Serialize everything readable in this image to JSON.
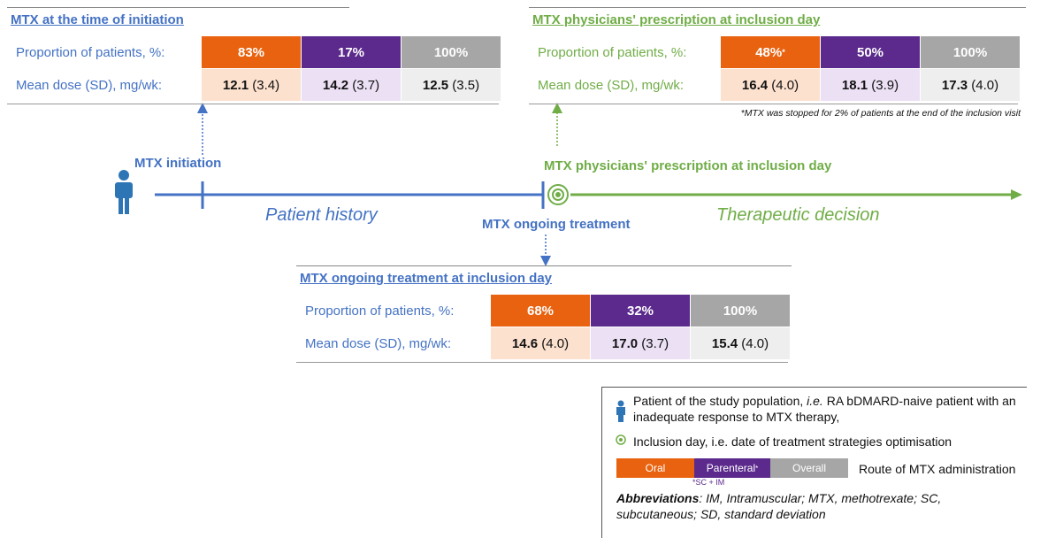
{
  "panels": [
    {
      "title": "MTX at the time of initiation",
      "rows": [
        {
          "label": "Proportion of patients, %:",
          "cells": [
            {
              "value": "83%"
            },
            {
              "value": "17%"
            },
            {
              "value": "100%"
            }
          ]
        },
        {
          "label": "Mean dose (SD), mg/wk:",
          "cells": [
            {
              "mean": "12.1",
              "sd": "(3.4)"
            },
            {
              "mean": "14.2",
              "sd": "(3.7)"
            },
            {
              "mean": "12.5",
              "sd": "(3.5)"
            }
          ]
        }
      ]
    },
    {
      "title": "MTX physicians' prescription at inclusion day",
      "rows": [
        {
          "label": "Proportion of patients, %:",
          "cells": [
            {
              "value": "48%",
              "mark": "*"
            },
            {
              "value": "50%"
            },
            {
              "value": "100%"
            }
          ]
        },
        {
          "label": "Mean dose (SD), mg/wk:",
          "cells": [
            {
              "mean": "16.4",
              "sd": "(4.0)"
            },
            {
              "mean": "18.1",
              "sd": "(3.9)"
            },
            {
              "mean": "17.3",
              "sd": "(4.0)"
            }
          ]
        }
      ],
      "footnote": "*MTX was stopped for 2% of patients at the end of the inclusion visit"
    },
    {
      "title": "MTX ongoing treatment at inclusion day",
      "rows": [
        {
          "label": "Proportion of patients, %:",
          "cells": [
            {
              "value": "68%"
            },
            {
              "value": "32%"
            },
            {
              "value": "100%"
            }
          ]
        },
        {
          "label": "Mean dose (SD), mg/wk:",
          "cells": [
            {
              "mean": "14.6",
              "sd": "(4.0)"
            },
            {
              "mean": "17.0",
              "sd": "(3.7)"
            },
            {
              "mean": "15.4",
              "sd": "(4.0)"
            }
          ]
        }
      ]
    }
  ],
  "timeline": {
    "initiation": "MTX initiation",
    "history": "Patient history",
    "ongoing": "MTX ongoing treatment",
    "prescription": "MTX physicians' prescription at inclusion day",
    "decision": "Therapeutic decision"
  },
  "legend": {
    "patient": {
      "text1": "Patient of the study population,",
      "ie": "i.e.",
      "text2": "RA bDMARD-naive patient with an inadequate response to MTX therapy,"
    },
    "inclusion": "Inclusion day, i.e. date of treatment strategies optimisation",
    "routes": {
      "oral": "Oral",
      "parenteral": "Parenteral",
      "mark": "*",
      "overall": "Overall",
      "note": "*SC + IM",
      "caption": "Route of MTX administration"
    },
    "abbreviations": {
      "label": "Abbreviations",
      "text": ": IM, Intramuscular; MTX, methotrexate; SC, subcutaneous; SD, standard deviation"
    }
  }
}
